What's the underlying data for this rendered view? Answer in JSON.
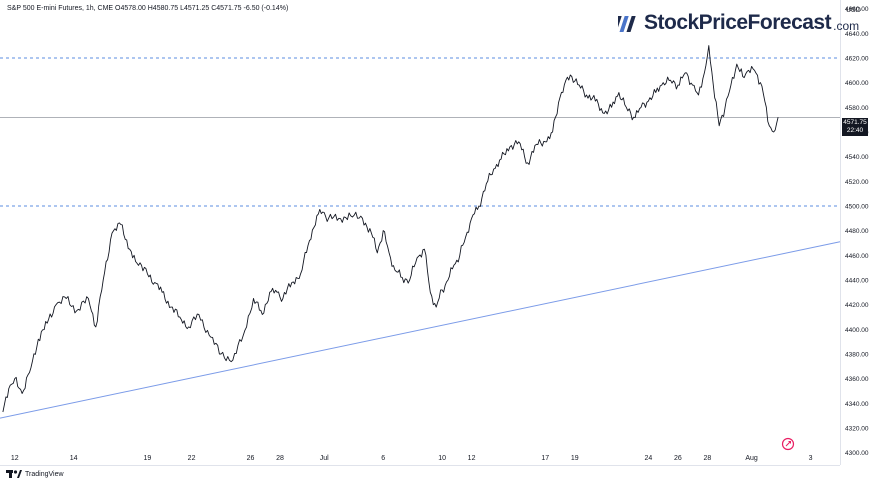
{
  "header": {
    "symbol": "S&P 500 E-mini Futures, 1h, CME",
    "open": "O4578.00",
    "high": "H4580.75",
    "low": "L4571.25",
    "close": "C4571.75",
    "change": "-6.50 (-0.14%)"
  },
  "brand": {
    "name": "StockPriceForecast",
    "suffix": ".com"
  },
  "footer": {
    "label": "TradingView"
  },
  "price_tag": {
    "price": "4571.75",
    "time": "22:40"
  },
  "colors": {
    "candles": "#131722",
    "trendline": "#7b9be8",
    "dashed": "#5b8de0",
    "grid_text": "#131722",
    "brand": "#1e2a4a"
  },
  "chart_data": {
    "type": "line",
    "title": "S&P 500 E-mini Futures, 1h, CME",
    "currency": "USD",
    "ylim": [
      4290,
      4667
    ],
    "y_ticks": [
      4300,
      4320,
      4340,
      4360,
      4380,
      4400,
      4420,
      4440,
      4460,
      4480,
      4500,
      4520,
      4540,
      4560,
      4580,
      4600,
      4620,
      4640,
      4660
    ],
    "x_tick_labels": [
      "12",
      "14",
      "19",
      "22",
      "26",
      "28",
      "Jul",
      "6",
      "10",
      "12",
      "17",
      "19",
      "24",
      "26",
      "28",
      "Aug",
      "3"
    ],
    "x_tick_positions": [
      0,
      4,
      9,
      12,
      16,
      18,
      21,
      25,
      29,
      31,
      36,
      38,
      43,
      45,
      47,
      50,
      54
    ],
    "x_range": [
      -1,
      56
    ],
    "horizontal_levels": [
      4620,
      4500
    ],
    "last_price": 4571.75,
    "trendline": {
      "from": {
        "x": -1,
        "y": 4328
      },
      "to": {
        "x": 56,
        "y": 4471
      }
    },
    "series": [
      {
        "name": "",
        "x": [
          -0.8,
          -0.4,
          0.0,
          0.5,
          1.0,
          1.6,
          2.2,
          2.8,
          3.5,
          4.2,
          5.0,
          5.5,
          6.0,
          6.6,
          7.2,
          7.8,
          8.2,
          8.6,
          9.0,
          9.5,
          10.0,
          10.6,
          11.2,
          11.8,
          12.5,
          13.2,
          14.0,
          14.8,
          15.5,
          16.2,
          16.8,
          17.3,
          17.8,
          18.2,
          18.8,
          19.4,
          20.0,
          20.5,
          20.9,
          21.3,
          22.0,
          22.8,
          23.6,
          24.2,
          24.6,
          25.0,
          25.4,
          25.8,
          26.3,
          26.8,
          27.3,
          27.8,
          28.2,
          28.6,
          29.0,
          29.4,
          29.8,
          30.2,
          30.6,
          31.0,
          31.5,
          32.0,
          32.5,
          33.0,
          33.6,
          34.2,
          34.8,
          35.4,
          36.0,
          36.5,
          37.0,
          37.4,
          37.8,
          38.3,
          38.8,
          39.4,
          40.0,
          40.5,
          41.0,
          41.5,
          42.0,
          42.5,
          43.0,
          43.5,
          44.0,
          44.5,
          45.0,
          45.5,
          46.0,
          46.4,
          46.8,
          47.1,
          47.4,
          47.8,
          48.2,
          48.6,
          49.0,
          49.4,
          49.8,
          50.2,
          50.6,
          50.9,
          51.2,
          51.5,
          51.8
        ],
        "values": [
          4333,
          4352,
          4360,
          4348,
          4365,
          4392,
          4405,
          4420,
          4425,
          4415,
          4425,
          4402,
          4440,
          4478,
          4485,
          4465,
          4455,
          4452,
          4445,
          4438,
          4430,
          4418,
          4410,
          4402,
          4412,
          4395,
          4380,
          4375,
          4395,
          4425,
          4412,
          4430,
          4430,
          4425,
          4438,
          4445,
          4472,
          4492,
          4495,
          4490,
          4490,
          4492,
          4490,
          4478,
          4462,
          4480,
          4462,
          4448,
          4442,
          4440,
          4458,
          4465,
          4430,
          4418,
          4432,
          4440,
          4452,
          4460,
          4475,
          4490,
          4500,
          4518,
          4530,
          4538,
          4548,
          4552,
          4535,
          4550,
          4552,
          4560,
          4588,
          4602,
          4605,
          4598,
          4590,
          4585,
          4575,
          4580,
          4592,
          4580,
          4572,
          4580,
          4585,
          4592,
          4600,
          4602,
          4598,
          4608,
          4598,
          4590,
          4608,
          4630,
          4598,
          4565,
          4580,
          4598,
          4615,
          4605,
          4610,
          4610,
          4600,
          4585,
          4565,
          4560,
          4572
        ]
      }
    ]
  }
}
